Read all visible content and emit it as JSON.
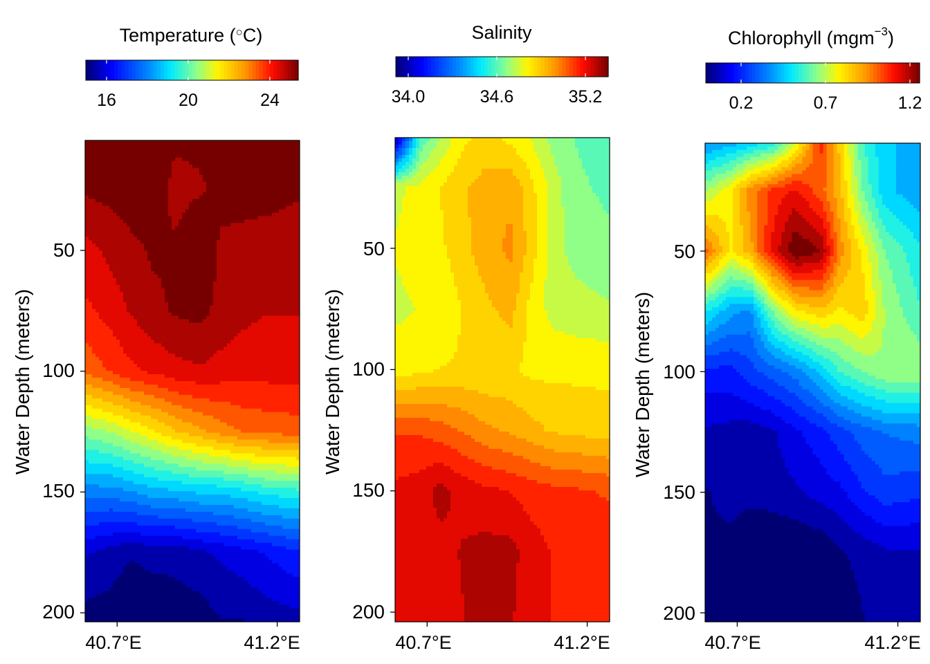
{
  "chart_data": [
    {
      "type": "heatmap",
      "title": "Temperature (°C)",
      "title_parts": {
        "base": "Temperature (",
        "deg": "○",
        "unit": "C)"
      },
      "colorbar": {
        "min": 15,
        "max": 25.2,
        "ticks": [
          16,
          20,
          24
        ],
        "tick_labels": [
          "16",
          "20",
          "24"
        ],
        "colormap": "jet"
      },
      "ylabel": "Water Depth (meters)",
      "xlim": [
        40.6,
        41.27
      ],
      "ylim": [
        0,
        205
      ],
      "x_ticks": [
        40.7,
        41.2
      ],
      "x_tick_labels": [
        "40.7°E",
        "41.2°E"
      ],
      "y_ticks": [
        50,
        100,
        150,
        200
      ],
      "y_tick_labels": [
        "50",
        "100",
        "150",
        "200"
      ],
      "x": [
        40.6,
        40.68,
        40.74,
        40.81,
        40.88,
        40.96,
        41.02,
        41.09,
        41.16,
        41.27
      ],
      "depth": [
        5,
        25,
        50,
        75,
        100,
        125,
        150,
        175,
        205
      ],
      "values": [
        [
          25.0,
          25.1,
          25.1,
          25.1,
          24.8,
          24.8,
          24.9,
          25.1,
          25.1,
          25.1
        ],
        [
          24.8,
          24.9,
          25.0,
          25.0,
          24.6,
          24.7,
          24.8,
          24.9,
          25.0,
          24.8
        ],
        [
          24.1,
          24.4,
          24.6,
          24.8,
          24.8,
          25.1,
          24.7,
          24.6,
          24.4,
          24.4
        ],
        [
          23.7,
          24.0,
          24.3,
          24.6,
          24.8,
          24.9,
          24.6,
          24.4,
          24.3,
          24.3
        ],
        [
          23.0,
          23.4,
          23.7,
          23.9,
          24.1,
          24.2,
          24.1,
          24.0,
          24.0,
          24.0
        ],
        [
          20.3,
          20.6,
          21.0,
          21.4,
          21.9,
          22.3,
          22.6,
          22.9,
          23.0,
          23.1
        ],
        [
          18.0,
          18.0,
          18.2,
          18.5,
          18.6,
          18.8,
          18.8,
          19.0,
          19.3,
          19.5
        ],
        [
          16.0,
          15.7,
          15.5,
          15.6,
          15.6,
          15.8,
          16.0,
          16.2,
          16.4,
          16.8
        ],
        [
          15.2,
          15.2,
          15.1,
          15.1,
          15.2,
          15.2,
          15.4,
          15.4,
          15.6,
          15.7
        ]
      ]
    },
    {
      "type": "heatmap",
      "title": "Salinity",
      "colorbar": {
        "min": 33.9,
        "max": 35.5,
        "ticks": [
          34.0,
          34.6,
          35.2
        ],
        "tick_labels": [
          "34.0",
          "34.6",
          "35.2"
        ],
        "colormap": "jet"
      },
      "ylabel": "Water Depth (meters)",
      "xlim": [
        40.6,
        41.27
      ],
      "ylim": [
        0,
        205
      ],
      "x_ticks": [
        40.7,
        41.2
      ],
      "x_tick_labels": [
        "40.7°E",
        "41.2°E"
      ],
      "y_ticks": [
        50,
        100,
        150,
        200
      ],
      "y_tick_labels": [
        "50",
        "100",
        "150",
        "200"
      ],
      "x": [
        40.6,
        40.68,
        40.74,
        40.81,
        40.88,
        40.96,
        41.02,
        41.09,
        41.16,
        41.27
      ],
      "depth": [
        5,
        25,
        50,
        75,
        100,
        125,
        150,
        175,
        205
      ],
      "values": [
        [
          34.0,
          34.65,
          34.78,
          34.9,
          34.95,
          34.9,
          34.85,
          34.75,
          34.7,
          34.65
        ],
        [
          34.83,
          34.87,
          34.92,
          34.98,
          35.02,
          35.05,
          34.95,
          34.82,
          34.72,
          34.68
        ],
        [
          34.85,
          34.88,
          34.9,
          34.97,
          35.03,
          35.08,
          34.97,
          34.8,
          34.75,
          34.72
        ],
        [
          34.83,
          34.85,
          34.85,
          34.92,
          34.97,
          35.02,
          34.9,
          34.82,
          34.8,
          34.78
        ],
        [
          34.88,
          34.9,
          34.92,
          34.93,
          34.93,
          34.93,
          34.9,
          34.9,
          34.9,
          34.9
        ],
        [
          35.2,
          35.2,
          35.17,
          35.13,
          35.08,
          35.05,
          35.02,
          34.98,
          34.97,
          34.95
        ],
        [
          35.3,
          35.32,
          35.38,
          35.33,
          35.3,
          35.28,
          35.25,
          35.23,
          35.22,
          35.2
        ],
        [
          35.3,
          35.32,
          35.33,
          35.36,
          35.38,
          35.38,
          35.32,
          35.28,
          35.26,
          35.25
        ],
        [
          35.28,
          35.3,
          35.32,
          35.35,
          35.38,
          35.36,
          35.32,
          35.28,
          35.27,
          35.25
        ]
      ]
    },
    {
      "type": "heatmap",
      "title": "Chlorophyll (mgm−3)",
      "title_parts": {
        "base": "Chlorophyll (mgm",
        "sup": "−3",
        "close": ")"
      },
      "colorbar": {
        "min": 0.05,
        "max": 1.25,
        "ticks": [
          0.2,
          0.7,
          1.2
        ],
        "tick_labels": [
          "0.2",
          "0.7",
          "1.2"
        ],
        "colormap": "jet"
      },
      "ylabel": "Water Depth (meters)",
      "xlim": [
        40.6,
        41.27
      ],
      "ylim": [
        0,
        205
      ],
      "x_ticks": [
        40.7,
        41.2
      ],
      "x_tick_labels": [
        "40.7°E",
        "41.2°E"
      ],
      "y_ticks": [
        50,
        100,
        150,
        200
      ],
      "y_tick_labels": [
        "50",
        "100",
        "150",
        "200"
      ],
      "x": [
        40.6,
        40.68,
        40.74,
        40.81,
        40.88,
        40.96,
        41.02,
        41.09,
        41.16,
        41.27
      ],
      "depth": [
        5,
        25,
        50,
        75,
        100,
        125,
        150,
        175,
        205
      ],
      "values": [
        [
          0.42,
          0.46,
          0.5,
          0.55,
          0.75,
          1.05,
          0.85,
          0.6,
          0.5,
          0.45
        ],
        [
          0.7,
          0.8,
          0.95,
          1.05,
          1.1,
          1.0,
          0.88,
          0.65,
          0.5,
          0.45
        ],
        [
          1.0,
          0.8,
          0.9,
          1.1,
          1.25,
          1.2,
          0.95,
          0.8,
          0.65,
          0.55
        ],
        [
          0.55,
          0.45,
          0.42,
          0.65,
          0.8,
          0.85,
          0.8,
          0.85,
          0.7,
          0.6
        ],
        [
          0.25,
          0.25,
          0.3,
          0.35,
          0.4,
          0.5,
          0.6,
          0.65,
          0.7,
          0.7
        ],
        [
          0.15,
          0.14,
          0.13,
          0.15,
          0.2,
          0.25,
          0.3,
          0.35,
          0.38,
          0.4
        ],
        [
          0.1,
          0.12,
          0.12,
          0.13,
          0.15,
          0.18,
          0.2,
          0.26,
          0.3,
          0.28
        ],
        [
          0.1,
          0.09,
          0.06,
          0.05,
          0.05,
          0.06,
          0.1,
          0.12,
          0.15,
          0.15
        ],
        [
          0.1,
          0.08,
          0.05,
          0.04,
          0.03,
          0.04,
          0.06,
          0.1,
          0.12,
          0.13
        ]
      ]
    }
  ]
}
